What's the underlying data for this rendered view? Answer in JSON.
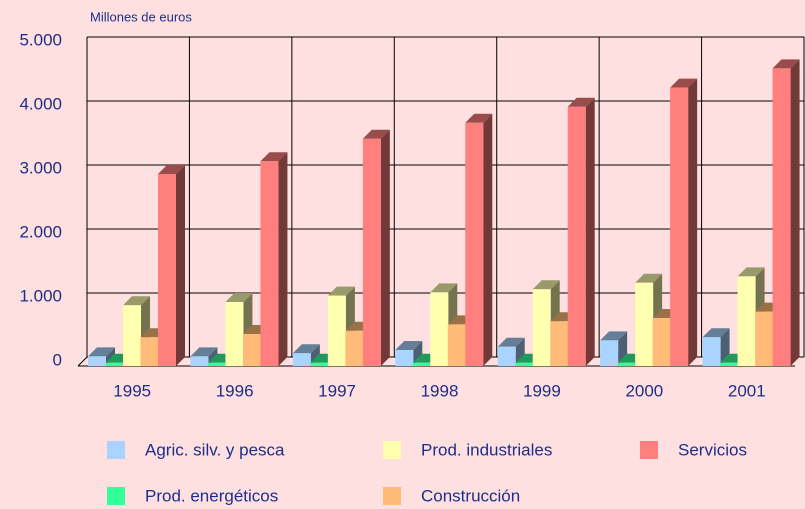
{
  "chart_data": {
    "type": "bar3d",
    "y_label": "Millones de euros",
    "categories": [
      "1995",
      "1996",
      "1997",
      "1998",
      "1999",
      "2000",
      "2001"
    ],
    "series": [
      {
        "name": "Agric. silv. y pesca",
        "color": "#a8d4ff",
        "values": [
          150,
          150,
          200,
          250,
          300,
          400,
          450
        ]
      },
      {
        "name": "Prod. energéticos",
        "color": "#33ff99",
        "values": [
          50,
          50,
          50,
          50,
          50,
          50,
          50
        ]
      },
      {
        "name": "Prod. industriales",
        "color": "#ffffb0",
        "values": [
          950,
          1000,
          1100,
          1150,
          1200,
          1300,
          1400
        ]
      },
      {
        "name": "Construcción",
        "color": "#ffbb77",
        "values": [
          450,
          500,
          550,
          650,
          700,
          750,
          850
        ]
      },
      {
        "name": "Servicios",
        "color": "#ff7f7f",
        "values": [
          3000,
          3200,
          3550,
          3800,
          4050,
          4350,
          4650
        ]
      }
    ],
    "ylim": [
      0,
      5000
    ],
    "yticks": [
      {
        "value": 0,
        "label": "0"
      },
      {
        "value": 1000,
        "label": "1.000"
      },
      {
        "value": 2000,
        "label": "2.000"
      },
      {
        "value": 3000,
        "label": "3.000"
      },
      {
        "value": 4000,
        "label": "4.000"
      },
      {
        "value": 5000,
        "label": "5.000"
      }
    ],
    "grid": true
  }
}
